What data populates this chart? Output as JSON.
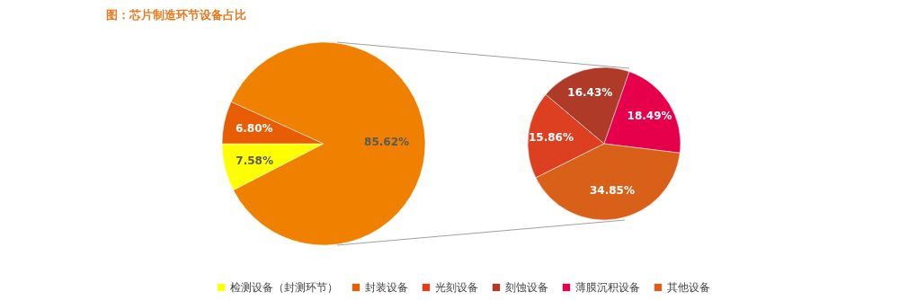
{
  "chart_data": [
    {
      "type": "pie",
      "title": "图：芯片制造环节设备占比",
      "categories": [
        "检测设备（封测环节）",
        "封装设备",
        null
      ],
      "values": [
        7.58,
        6.8,
        85.62
      ],
      "colors": [
        "#ffff00",
        "#e85d04",
        "#f08000"
      ],
      "value_labels": [
        "7.58%",
        "6.80%",
        "85.62%"
      ],
      "legend": "bottom"
    },
    {
      "type": "pie",
      "categories": [
        "光刻设备",
        "刻蚀设备",
        "薄膜沉积设备",
        "其他设备"
      ],
      "values": [
        15.86,
        16.43,
        18.49,
        34.85
      ],
      "colors": [
        "#dd4020",
        "#b03a28",
        "#e6004c",
        "#d86018"
      ],
      "value_labels": [
        "15.86%",
        "16.43%",
        "18.49%",
        "34.85%"
      ],
      "legend": "bottom"
    }
  ]
}
